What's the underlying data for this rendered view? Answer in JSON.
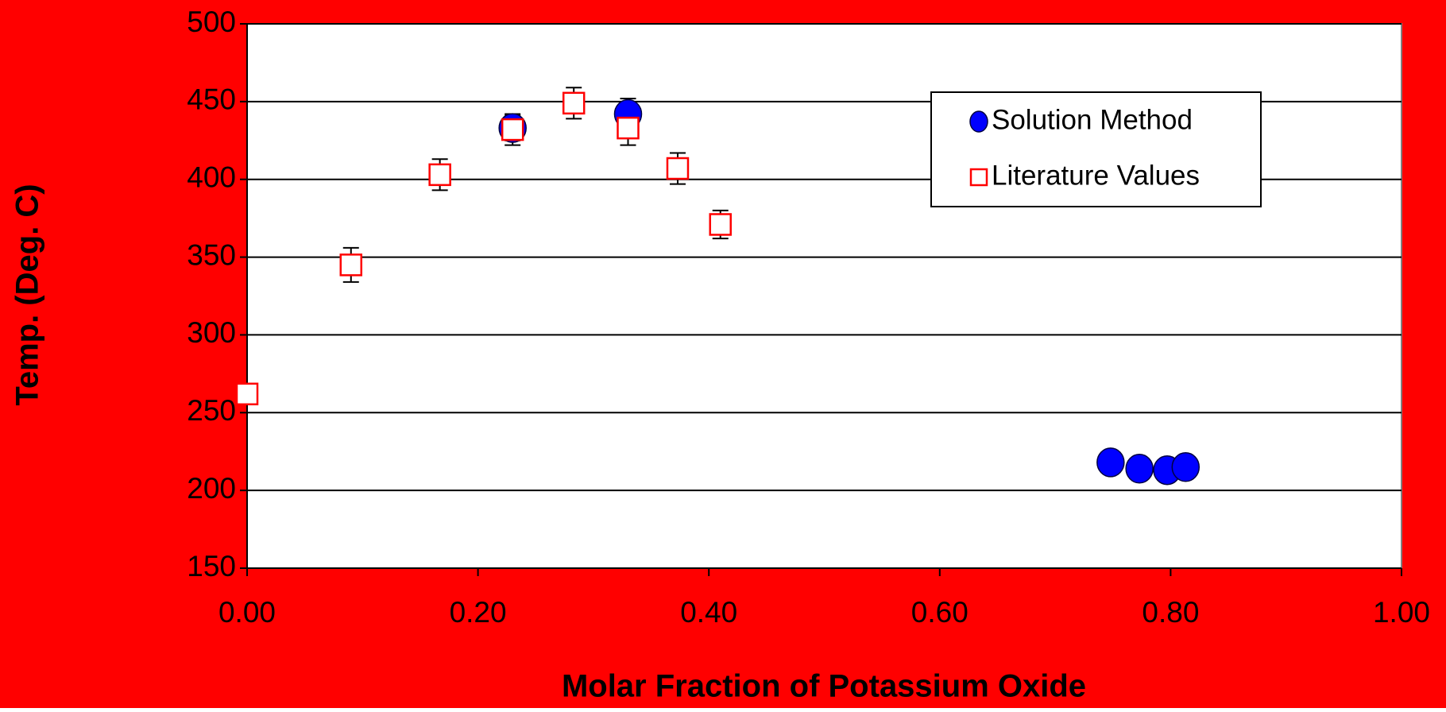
{
  "chart_data": {
    "type": "scatter",
    "x_label": "Molar Fraction of Potassium Oxide",
    "y_label": "Temp. (Deg. C)",
    "xlim": [
      0,
      1
    ],
    "ylim": [
      150,
      500
    ],
    "xticks": [
      {
        "value": 0,
        "label": "0.00"
      },
      {
        "value": 0.2,
        "label": "0.20"
      },
      {
        "value": 0.4,
        "label": "0.40"
      },
      {
        "value": 0.6,
        "label": "0.60"
      },
      {
        "value": 0.8,
        "label": "0.80"
      },
      {
        "value": 1,
        "label": "1.00"
      }
    ],
    "yticks": [
      150,
      200,
      250,
      300,
      350,
      400,
      450,
      500
    ],
    "grid": true,
    "legend": "upper right",
    "background": "#ff0000",
    "series": [
      {
        "name": "Solution Method",
        "color": "#0000ff",
        "marker": "circle",
        "x": [
          0.23,
          0.33,
          0.748,
          0.773,
          0.797,
          0.813
        ],
        "values": [
          433,
          442,
          218,
          214,
          213,
          215
        ],
        "errors": [
          8,
          10,
          null,
          null,
          null,
          null
        ]
      },
      {
        "name": "Literature Values",
        "color": "#ff0000",
        "marker": "square",
        "x": [
          0.0,
          0.09,
          0.167,
          0.23,
          0.283,
          0.33,
          0.373,
          0.41
        ],
        "values": [
          262,
          345,
          403,
          432,
          449,
          433,
          407,
          371
        ],
        "errors": [
          null,
          11,
          10,
          10,
          10,
          11,
          10,
          9
        ]
      }
    ]
  }
}
